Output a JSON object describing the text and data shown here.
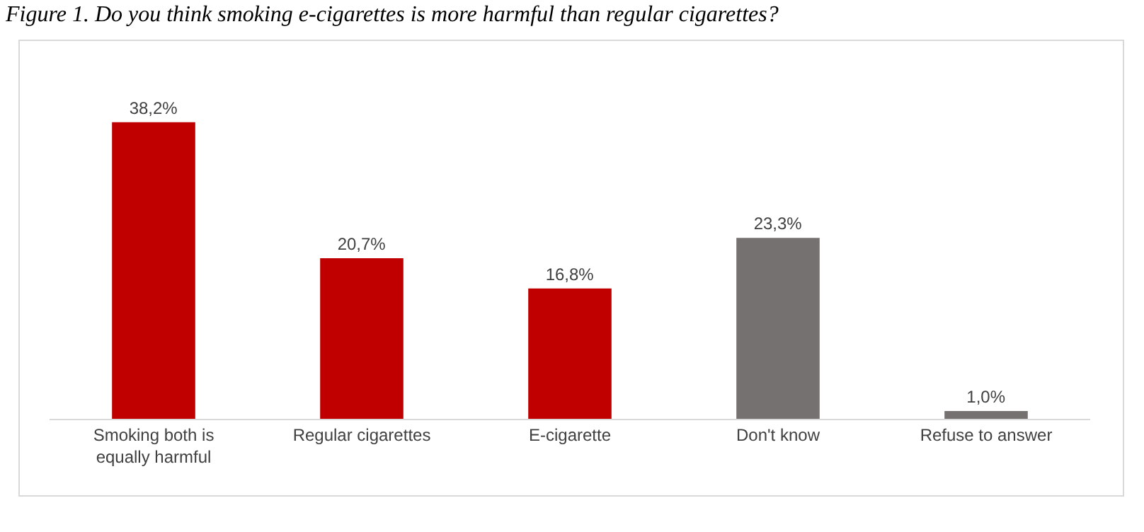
{
  "chart_data": {
    "type": "bar",
    "title": "Figure 1. Do you think smoking e-cigarettes is more harmful than regular cigarettes?",
    "categories": [
      "Smoking both is equally harmful",
      "Regular cigarettes",
      "E-cigarette",
      "Don't know",
      "Refuse to answer"
    ],
    "values": [
      38.2,
      20.7,
      16.8,
      23.3,
      1.0
    ],
    "colors": [
      "#c00000",
      "#c00000",
      "#c00000",
      "#767171",
      "#767171"
    ],
    "value_labels": [
      "38,2%",
      "20,7%",
      "16,8%",
      "23,3%",
      "1,0%"
    ]
  }
}
